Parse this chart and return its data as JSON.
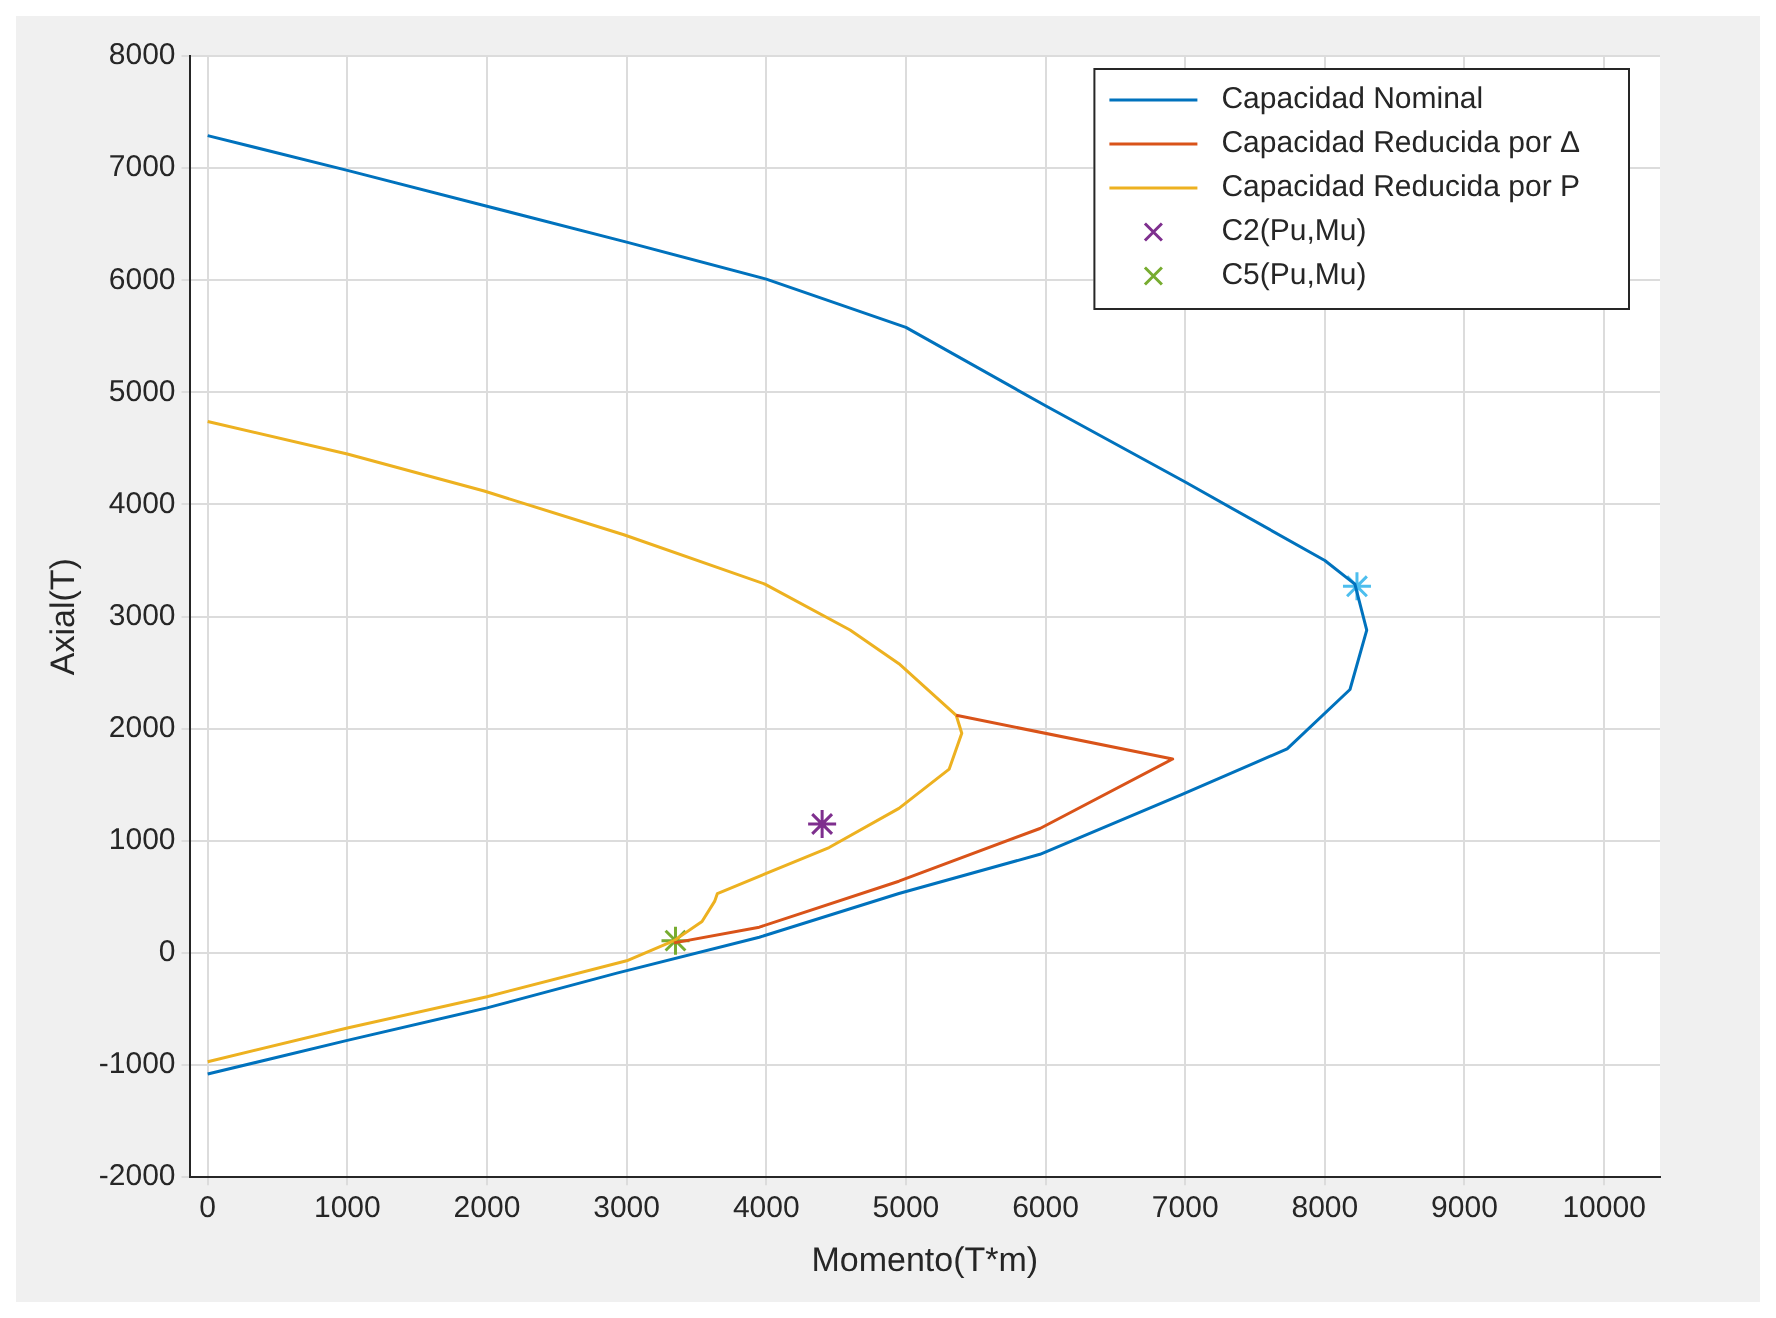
{
  "chart_data": {
    "type": "line",
    "xlabel": "Momento(T*m)",
    "ylabel": "Axial(T)",
    "xlim": [
      -130,
      10400
    ],
    "xticks": [
      0,
      1000,
      2000,
      3000,
      4000,
      5000,
      6000,
      7000,
      8000,
      9000,
      10000
    ],
    "ylim": [
      -2000,
      8000
    ],
    "yticks": [
      -2000,
      -1000,
      0,
      1000,
      2000,
      3000,
      4000,
      5000,
      6000,
      7000,
      8000
    ],
    "grid": true,
    "legend": "top right",
    "marker": "none",
    "line_style": "solid",
    "series": [
      {
        "name": "Capacidad Nominal",
        "color": "#0072bd",
        "x": [
          0,
          1000,
          2000,
          3000,
          4000,
          5000,
          6000,
          7000,
          8000,
          8215,
          8300,
          8180,
          7730,
          6970,
          5960,
          4950,
          3950,
          2930,
          2000,
          1000,
          0
        ],
        "values": [
          7290,
          6980,
          6660,
          6340,
          6010,
          5580,
          4880,
          4200,
          3500,
          3290,
          2880,
          2350,
          1820,
          1410,
          880,
          530,
          140,
          -180,
          -490,
          -780,
          -1080
        ]
      },
      {
        "name": "Capacidad Reducida por Δ",
        "color": "#d95319",
        "x": [
          3340,
          3950,
          4950,
          5960,
          6910,
          5360
        ],
        "values": [
          90,
          230,
          640,
          1110,
          1730,
          2120
        ]
      },
      {
        "name": "Capacidad Reducida por P",
        "color": "#edb120",
        "x": [
          0,
          1000,
          1980,
          2980,
          3990,
          4600,
          4950,
          5360,
          5400,
          5310,
          4950,
          4450,
          3650,
          3630,
          3540,
          3340,
          3000,
          2000,
          1000,
          0
        ],
        "values": [
          4740,
          4450,
          4120,
          3730,
          3290,
          2880,
          2580,
          2120,
          1960,
          1640,
          1290,
          940,
          530,
          460,
          280,
          110,
          -70,
          -390,
          -670,
          -970
        ]
      },
      {
        "name": "C2(Pu,Mu)",
        "type": "scatter",
        "marker": "cross",
        "color": "#7e2f8e",
        "x": [
          4400
        ],
        "values": [
          1150
        ]
      },
      {
        "name": "C5(Pu,Mu)",
        "type": "scatter",
        "marker": "cross",
        "color": "#77ac30",
        "x": [
          3350
        ],
        "values": [
          110
        ]
      },
      {
        "type": "scatter",
        "marker": "cross",
        "color": "#4dbeee",
        "x": [
          8230
        ],
        "values": [
          3270
        ]
      }
    ]
  }
}
